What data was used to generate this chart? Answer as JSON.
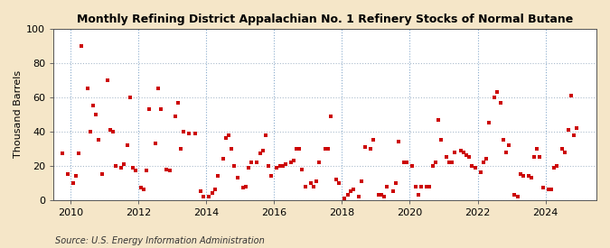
{
  "title": "Monthly Refining District Appalachian No. 1 Refinery Stocks of Normal Butane",
  "ylabel": "Thousand Barrels",
  "source": "Source: U.S. Energy Information Administration",
  "ylim": [
    0,
    100
  ],
  "xlim": [
    2009.5,
    2025.5
  ],
  "xticks": [
    2010,
    2012,
    2014,
    2016,
    2018,
    2020,
    2022,
    2024
  ],
  "yticks": [
    0,
    20,
    40,
    60,
    80,
    100
  ],
  "marker_color": "#CC0000",
  "marker_size": 5,
  "figure_background": "#F5E6C8",
  "plot_background": "#FFFFFF",
  "grid_color": "#AABBCC",
  "data_points": [
    [
      2009.75,
      27
    ],
    [
      2009.92,
      15
    ],
    [
      2010.08,
      10
    ],
    [
      2010.17,
      14
    ],
    [
      2010.25,
      27
    ],
    [
      2010.33,
      90
    ],
    [
      2010.5,
      65
    ],
    [
      2010.58,
      40
    ],
    [
      2010.67,
      55
    ],
    [
      2010.75,
      50
    ],
    [
      2010.83,
      35
    ],
    [
      2010.92,
      15
    ],
    [
      2011.08,
      70
    ],
    [
      2011.17,
      41
    ],
    [
      2011.25,
      40
    ],
    [
      2011.33,
      20
    ],
    [
      2011.5,
      19
    ],
    [
      2011.58,
      21
    ],
    [
      2011.67,
      32
    ],
    [
      2011.75,
      60
    ],
    [
      2011.83,
      19
    ],
    [
      2011.92,
      17
    ],
    [
      2012.08,
      7
    ],
    [
      2012.17,
      6
    ],
    [
      2012.25,
      17
    ],
    [
      2012.33,
      53
    ],
    [
      2012.5,
      33
    ],
    [
      2012.58,
      65
    ],
    [
      2012.67,
      53
    ],
    [
      2012.83,
      18
    ],
    [
      2012.92,
      17
    ],
    [
      2013.08,
      49
    ],
    [
      2013.17,
      57
    ],
    [
      2013.25,
      30
    ],
    [
      2013.33,
      40
    ],
    [
      2013.5,
      39
    ],
    [
      2013.67,
      39
    ],
    [
      2013.83,
      5
    ],
    [
      2013.92,
      2
    ],
    [
      2014.08,
      2
    ],
    [
      2014.17,
      4
    ],
    [
      2014.25,
      6
    ],
    [
      2014.33,
      14
    ],
    [
      2014.5,
      24
    ],
    [
      2014.58,
      36
    ],
    [
      2014.67,
      38
    ],
    [
      2014.75,
      30
    ],
    [
      2014.83,
      20
    ],
    [
      2014.92,
      13
    ],
    [
      2015.08,
      7
    ],
    [
      2015.17,
      8
    ],
    [
      2015.25,
      19
    ],
    [
      2015.33,
      22
    ],
    [
      2015.5,
      22
    ],
    [
      2015.58,
      27
    ],
    [
      2015.67,
      29
    ],
    [
      2015.75,
      38
    ],
    [
      2015.83,
      20
    ],
    [
      2015.92,
      14
    ],
    [
      2016.08,
      19
    ],
    [
      2016.17,
      20
    ],
    [
      2016.25,
      20
    ],
    [
      2016.33,
      21
    ],
    [
      2016.5,
      22
    ],
    [
      2016.58,
      23
    ],
    [
      2016.67,
      30
    ],
    [
      2016.75,
      30
    ],
    [
      2016.83,
      18
    ],
    [
      2016.92,
      8
    ],
    [
      2017.08,
      10
    ],
    [
      2017.17,
      8
    ],
    [
      2017.25,
      11
    ],
    [
      2017.33,
      22
    ],
    [
      2017.5,
      30
    ],
    [
      2017.58,
      30
    ],
    [
      2017.67,
      49
    ],
    [
      2017.83,
      12
    ],
    [
      2017.92,
      10
    ],
    [
      2018.08,
      1
    ],
    [
      2018.17,
      3
    ],
    [
      2018.25,
      5
    ],
    [
      2018.33,
      6
    ],
    [
      2018.5,
      2
    ],
    [
      2018.58,
      11
    ],
    [
      2018.67,
      31
    ],
    [
      2018.83,
      30
    ],
    [
      2018.92,
      35
    ],
    [
      2019.08,
      3
    ],
    [
      2019.17,
      3
    ],
    [
      2019.25,
      2
    ],
    [
      2019.33,
      8
    ],
    [
      2019.5,
      5
    ],
    [
      2019.58,
      10
    ],
    [
      2019.67,
      34
    ],
    [
      2019.83,
      22
    ],
    [
      2019.92,
      22
    ],
    [
      2020.08,
      20
    ],
    [
      2020.17,
      8
    ],
    [
      2020.25,
      3
    ],
    [
      2020.33,
      8
    ],
    [
      2020.5,
      8
    ],
    [
      2020.58,
      8
    ],
    [
      2020.67,
      20
    ],
    [
      2020.75,
      22
    ],
    [
      2020.83,
      47
    ],
    [
      2020.92,
      35
    ],
    [
      2021.08,
      25
    ],
    [
      2021.17,
      22
    ],
    [
      2021.25,
      22
    ],
    [
      2021.33,
      28
    ],
    [
      2021.5,
      29
    ],
    [
      2021.58,
      28
    ],
    [
      2021.67,
      26
    ],
    [
      2021.75,
      25
    ],
    [
      2021.83,
      20
    ],
    [
      2021.92,
      19
    ],
    [
      2022.08,
      16
    ],
    [
      2022.17,
      22
    ],
    [
      2022.25,
      24
    ],
    [
      2022.33,
      45
    ],
    [
      2022.5,
      60
    ],
    [
      2022.58,
      63
    ],
    [
      2022.67,
      57
    ],
    [
      2022.75,
      35
    ],
    [
      2022.83,
      28
    ],
    [
      2022.92,
      32
    ],
    [
      2023.08,
      3
    ],
    [
      2023.17,
      2
    ],
    [
      2023.25,
      15
    ],
    [
      2023.33,
      14
    ],
    [
      2023.5,
      14
    ],
    [
      2023.58,
      13
    ],
    [
      2023.67,
      25
    ],
    [
      2023.75,
      30
    ],
    [
      2023.83,
      25
    ],
    [
      2023.92,
      7
    ],
    [
      2024.08,
      6
    ],
    [
      2024.17,
      6
    ],
    [
      2024.25,
      19
    ],
    [
      2024.33,
      20
    ],
    [
      2024.5,
      30
    ],
    [
      2024.58,
      28
    ],
    [
      2024.67,
      41
    ],
    [
      2024.75,
      61
    ],
    [
      2024.83,
      38
    ],
    [
      2024.92,
      42
    ]
  ]
}
